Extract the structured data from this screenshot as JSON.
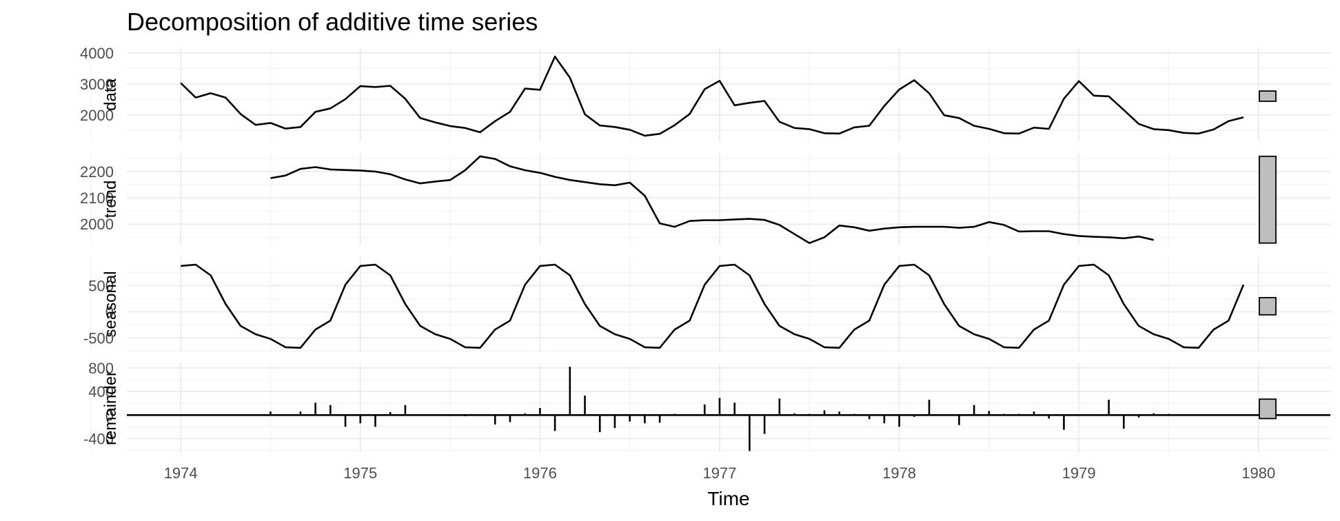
{
  "chart_data": {
    "type": "line",
    "title": "Decomposition of additive time series",
    "xlabel": "Time",
    "x_axis": {
      "range": [
        1973.7,
        1980.4
      ],
      "ticks": [
        1974,
        1975,
        1976,
        1977,
        1978,
        1979,
        1980
      ],
      "tick_labels": [
        "1974",
        "1975",
        "1976",
        "1977",
        "1978",
        "1979",
        "1980"
      ]
    },
    "grid": true,
    "panels": [
      {
        "name": "data",
        "ylabel": "data",
        "ylim": [
          1150,
          4150
        ],
        "ticks": [
          2000,
          3000,
          4000
        ],
        "tick_labels": [
          "2000",
          "3000",
          "4000"
        ],
        "start": 1974,
        "frequency": 12,
        "values": [
          3030,
          2560,
          2700,
          2560,
          2030,
          1680,
          1740,
          1560,
          1610,
          2100,
          2210,
          2510,
          2930,
          2900,
          2940,
          2520,
          1900,
          1760,
          1640,
          1580,
          1440,
          1800,
          2100,
          2850,
          2810,
          3880,
          3200,
          2020,
          1660,
          1610,
          1520,
          1330,
          1390,
          1670,
          2030,
          2830,
          3100,
          2310,
          2390,
          2450,
          1780,
          1580,
          1540,
          1410,
          1400,
          1600,
          1650,
          2290,
          2820,
          3120,
          2700,
          1990,
          1900,
          1650,
          1550,
          1410,
          1400,
          1590,
          1550,
          2520,
          3090,
          2620,
          2600,
          2160,
          1710,
          1540,
          1510,
          1420,
          1400,
          1530,
          1800,
          1920
        ]
      },
      {
        "name": "trend",
        "ylabel": "trend",
        "ylim": [
          1922,
          2268
        ],
        "ticks": [
          2000,
          2100,
          2200
        ],
        "tick_labels": [
          "2000",
          "2100",
          "2200"
        ],
        "start": 1974.5,
        "frequency": 12,
        "values": [
          2175,
          2185,
          2210,
          2217,
          2208,
          2206,
          2204,
          2200,
          2190,
          2170,
          2155,
          2162,
          2168,
          2205,
          2258,
          2248,
          2220,
          2205,
          2195,
          2180,
          2168,
          2160,
          2152,
          2148,
          2158,
          2108,
          2003,
          1990,
          2012,
          2015,
          2015,
          2018,
          2020,
          2016,
          1997,
          1962,
          1928,
          1950,
          1995,
          1988,
          1975,
          1983,
          1988,
          1990,
          1990,
          1990,
          1986,
          1990,
          2008,
          1997,
          1972,
          1973,
          1973,
          1962,
          1955,
          1952,
          1950,
          1946,
          1953,
          1940
        ]
      },
      {
        "name": "seasonal",
        "ylabel": "seasonal",
        "ylim": [
          -760,
          1050
        ],
        "ticks": [
          -500,
          0,
          500
        ],
        "tick_labels": [
          "-500",
          "0",
          "500"
        ],
        "start": 1974,
        "frequency": 12,
        "values": [
          880,
          905,
          700,
          150,
          -270,
          -430,
          -520,
          -680,
          -690,
          -340,
          -170,
          520,
          880,
          905,
          700,
          150,
          -270,
          -430,
          -520,
          -680,
          -690,
          -340,
          -170,
          520,
          880,
          905,
          700,
          150,
          -270,
          -430,
          -520,
          -680,
          -690,
          -340,
          -170,
          520,
          880,
          905,
          700,
          150,
          -270,
          -430,
          -520,
          -680,
          -690,
          -340,
          -170,
          520,
          880,
          905,
          700,
          150,
          -270,
          -430,
          -520,
          -680,
          -690,
          -340,
          -170,
          520,
          880,
          905,
          700,
          150,
          -270,
          -430,
          -520,
          -680,
          -690,
          -340,
          -170,
          520
        ]
      },
      {
        "name": "remainder",
        "ylabel": "remainder",
        "ylim": [
          -640,
          880
        ],
        "ticks": [
          -400,
          0,
          400,
          800
        ],
        "tick_labels": [
          "-400",
          "0",
          "400",
          "800"
        ],
        "start": 1974.5,
        "frequency": 12,
        "values": [
          60,
          0,
          60,
          210,
          170,
          -200,
          -140,
          -200,
          50,
          170,
          0,
          0,
          0,
          -20,
          0,
          -160,
          -120,
          30,
          120,
          -270,
          820,
          330,
          -290,
          -220,
          -110,
          -140,
          -130,
          20,
          0,
          180,
          290,
          210,
          -610,
          -320,
          280,
          30,
          20,
          80,
          60,
          20,
          -70,
          -140,
          -200,
          -30,
          260,
          0,
          -170,
          170,
          70,
          20,
          20,
          60,
          -60,
          -250,
          0,
          0,
          260,
          -230,
          -40,
          30,
          20,
          0
        ]
      }
    ]
  }
}
